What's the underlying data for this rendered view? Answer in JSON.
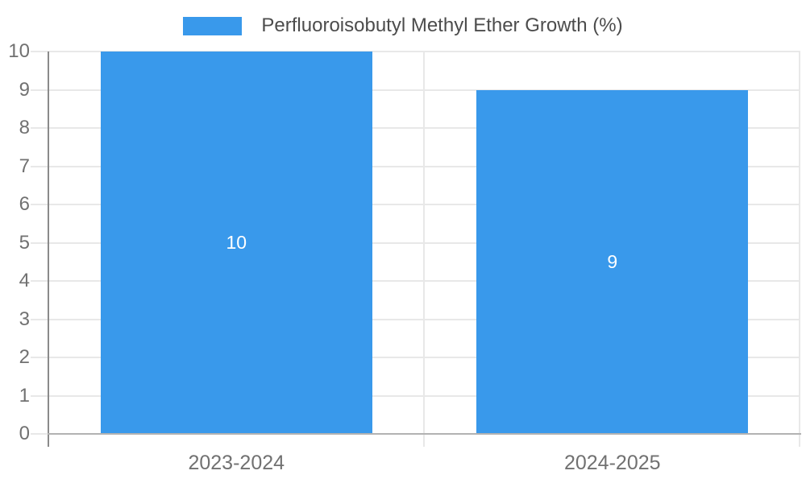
{
  "chart_data": {
    "type": "bar",
    "title": "",
    "legend": "Perfluoroisobutyl Methyl Ether Growth (%)",
    "legend_position": "top",
    "categories": [
      "2023-2024",
      "2024-2025"
    ],
    "series": [
      {
        "name": "Perfluoroisobutyl Methyl Ether Growth (%)",
        "values": [
          10,
          9
        ]
      }
    ],
    "data_labels": [
      "10",
      "9"
    ],
    "xlabel": "",
    "ylabel": "",
    "ylim": [
      0,
      10
    ],
    "ytick_step": 1,
    "yticks": [
      "0",
      "1",
      "2",
      "3",
      "4",
      "5",
      "6",
      "7",
      "8",
      "9",
      "10"
    ],
    "grid": true,
    "colors": {
      "bar": "#3999EB",
      "grid": "#e8e8e8",
      "y_axis": "#8a8a8a",
      "x_axis": "#b2b2b2",
      "tick_label": "#717171",
      "legend_text": "#4c4c4c",
      "data_label": "#ffffff",
      "background": "#ffffff"
    }
  }
}
